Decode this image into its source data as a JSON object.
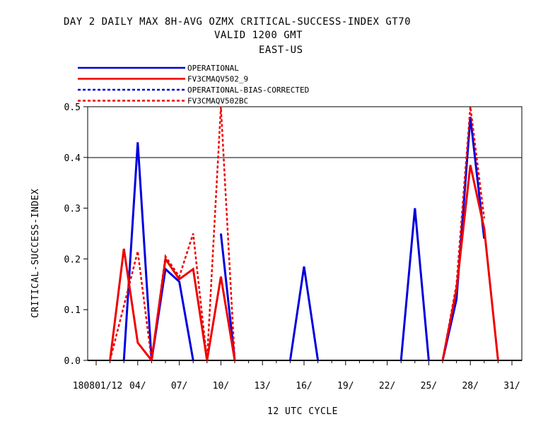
{
  "chart_data": {
    "type": "line",
    "title": [
      "DAY 2 DAILY MAX   8H-AVG OZMX CRITICAL-SUCCESS-INDEX GT70",
      "VALID 1200 GMT",
      "EAST-US"
    ],
    "xlabel": "12 UTC CYCLE",
    "ylabel": "CRITICAL-SUCCESS-INDEX",
    "ylim": [
      0,
      0.5
    ],
    "xlim": [
      0,
      31
    ],
    "yticks": [
      0.0,
      0.1,
      0.2,
      0.3,
      0.4,
      0.5
    ],
    "ytick_labels": [
      "0.0",
      "0.1",
      "0.2",
      "0.3",
      "0.4",
      "0.5"
    ],
    "xticks": [
      1,
      4,
      7,
      10,
      13,
      16,
      19,
      22,
      25,
      28,
      31
    ],
    "xtick_labels": [
      "180801/12",
      "04/",
      "07/",
      "10/",
      "13/",
      "16/",
      "19/",
      "22/",
      "25/",
      "28/",
      "31/"
    ],
    "legend_position": "top-left",
    "grid": "horizontal line at 0.4",
    "series": [
      {
        "name": "OPERATIONAL",
        "color": "#0000dd",
        "dashed": false,
        "segments": [
          [
            [
              3,
              0
            ],
            [
              4,
              0.43
            ],
            [
              5,
              0
            ]
          ],
          [
            [
              5,
              0
            ],
            [
              6,
              0.18
            ],
            [
              7,
              0.155
            ],
            [
              8,
              0
            ]
          ],
          [
            [
              10,
              0.25
            ],
            [
              11,
              0
            ]
          ],
          [
            [
              15,
              0
            ],
            [
              16,
              0.185
            ],
            [
              17,
              0
            ]
          ],
          [
            [
              23,
              0
            ],
            [
              24,
              0.3
            ],
            [
              25,
              0
            ]
          ],
          [
            [
              26,
              0
            ],
            [
              27,
              0.12
            ],
            [
              28,
              0.48
            ],
            [
              29,
              0.24
            ]
          ]
        ]
      },
      {
        "name": "FV3CMAQV502_9",
        "color": "#ee0000",
        "dashed": false,
        "segments": [
          [
            [
              2,
              0
            ],
            [
              3,
              0.22
            ],
            [
              4,
              0.035
            ],
            [
              5,
              0
            ]
          ],
          [
            [
              5,
              0
            ],
            [
              6,
              0.2
            ],
            [
              7,
              0.16
            ],
            [
              8,
              0.18
            ],
            [
              9,
              0
            ],
            [
              10,
              0.165
            ],
            [
              11,
              0
            ]
          ],
          [
            [
              26,
              0
            ],
            [
              27,
              0.14
            ],
            [
              28,
              0.385
            ],
            [
              29,
              0.26
            ],
            [
              30,
              0
            ]
          ]
        ]
      },
      {
        "name": "OPERATIONAL-BIAS-CORRECTED",
        "color": "#0000dd",
        "dashed": true,
        "segments": []
      },
      {
        "name": "FV3CMAQV502BC",
        "color": "#ee0000",
        "dashed": true,
        "segments": [
          [
            [
              2,
              0
            ],
            [
              4,
              0.215
            ],
            [
              5,
              0
            ]
          ],
          [
            [
              5,
              0
            ],
            [
              6,
              0.205
            ],
            [
              7,
              0.165
            ],
            [
              8,
              0.25
            ],
            [
              9,
              0
            ],
            [
              10,
              0.5
            ],
            [
              11,
              0
            ]
          ],
          [
            [
              26,
              0
            ],
            [
              27,
              0.15
            ],
            [
              28,
              0.5
            ],
            [
              29,
              0.28
            ]
          ]
        ]
      }
    ]
  }
}
